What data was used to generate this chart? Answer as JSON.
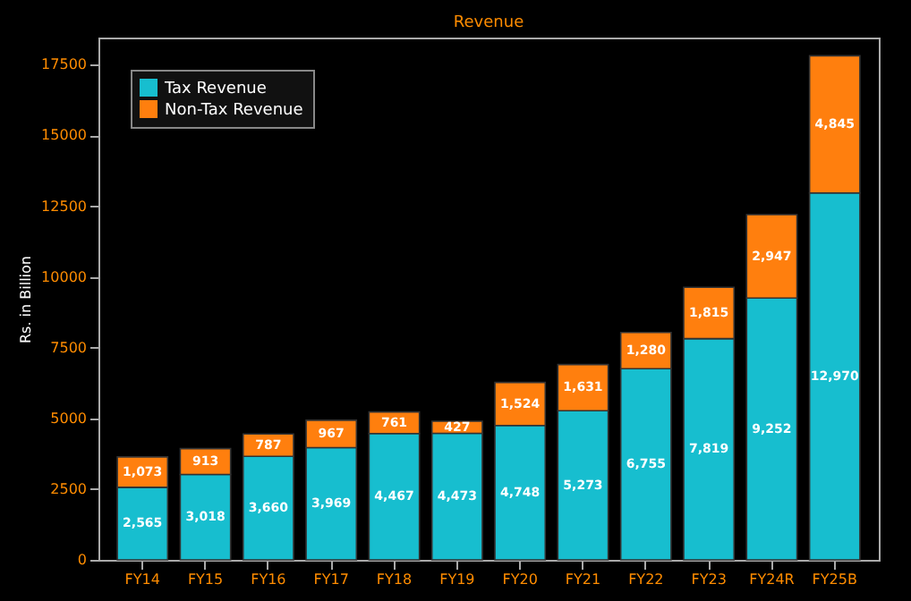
{
  "chart_data": {
    "type": "bar",
    "title": "Revenue",
    "ylabel": "Rs. in Billion",
    "stacked": true,
    "categories": [
      "FY14",
      "FY15",
      "FY16",
      "FY17",
      "FY18",
      "FY19",
      "FY20",
      "FY21",
      "FY22",
      "FY23",
      "FY24R",
      "FY25B"
    ],
    "series": [
      {
        "name": "Tax Revenue",
        "color": "#17becf",
        "values": [
          2565,
          3018,
          3660,
          3969,
          4467,
          4473,
          4748,
          5273,
          6755,
          7819,
          9252,
          12970
        ],
        "value_labels": [
          "2,565",
          "3,018",
          "3,660",
          "3,969",
          "4,467",
          "4,473",
          "4,748",
          "5,273",
          "6,755",
          "7,819",
          "9,252",
          "12,970"
        ]
      },
      {
        "name": "Non-Tax Revenue",
        "color": "#ff7f0e",
        "values": [
          1073,
          913,
          787,
          967,
          761,
          427,
          1524,
          1631,
          1280,
          1815,
          2947,
          4845
        ],
        "value_labels": [
          "1,073",
          "913",
          "787",
          "967",
          "761",
          "427",
          "1,524",
          "1,631",
          "1,280",
          "1,815",
          "2,947",
          "4,845"
        ]
      }
    ],
    "ylim": [
      0,
      18460
    ],
    "yticks": [
      0,
      2500,
      5000,
      7500,
      10000,
      12500,
      15000,
      17500
    ],
    "grid": false,
    "legend": "top left"
  }
}
